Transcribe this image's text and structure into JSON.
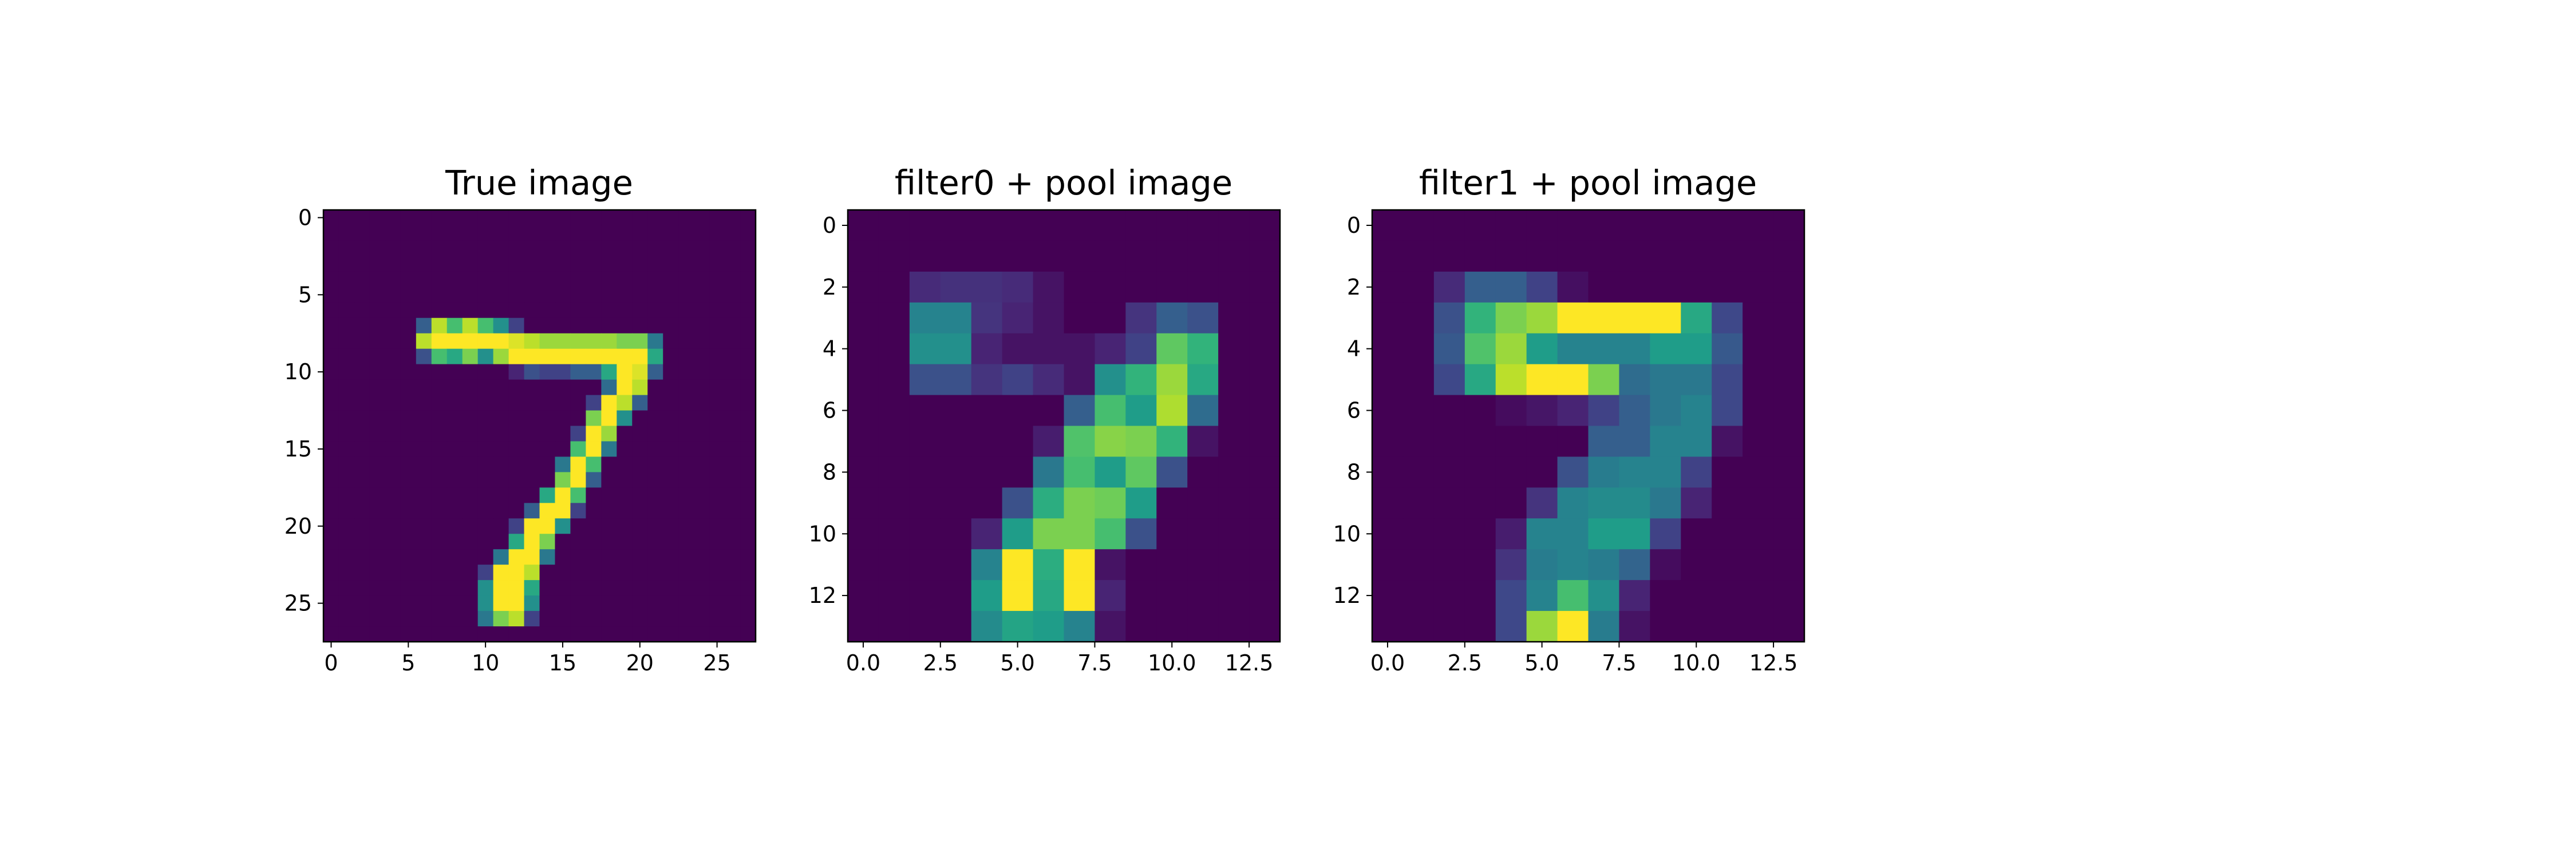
{
  "chart_data": [
    {
      "type": "heatmap",
      "title": "True image",
      "rows": 28,
      "cols": 28,
      "colormap": "viridis",
      "value_range": [
        0,
        1
      ],
      "xticks": [
        0,
        5,
        10,
        15,
        20,
        25
      ],
      "xtick_labels": [
        "0",
        "5",
        "10",
        "15",
        "20",
        "25"
      ],
      "yticks": [
        0,
        5,
        10,
        15,
        20,
        25
      ],
      "ytick_labels": [
        "0",
        "5",
        "10",
        "15",
        "20",
        "25"
      ],
      "values": [
        [
          0,
          0,
          0,
          0,
          0,
          0,
          0,
          0,
          0,
          0,
          0,
          0,
          0,
          0,
          0,
          0,
          0,
          0,
          0,
          0,
          0,
          0,
          0,
          0,
          0,
          0,
          0,
          0
        ],
        [
          0,
          0,
          0,
          0,
          0,
          0,
          0,
          0,
          0,
          0,
          0,
          0,
          0,
          0,
          0,
          0,
          0,
          0,
          0,
          0,
          0,
          0,
          0,
          0,
          0,
          0,
          0,
          0
        ],
        [
          0,
          0,
          0,
          0,
          0,
          0,
          0,
          0,
          0,
          0,
          0,
          0,
          0,
          0,
          0,
          0,
          0,
          0,
          0,
          0,
          0,
          0,
          0,
          0,
          0,
          0,
          0,
          0
        ],
        [
          0,
          0,
          0,
          0,
          0,
          0,
          0,
          0,
          0,
          0,
          0,
          0,
          0,
          0,
          0,
          0,
          0,
          0,
          0,
          0,
          0,
          0,
          0,
          0,
          0,
          0,
          0,
          0
        ],
        [
          0,
          0,
          0,
          0,
          0,
          0,
          0,
          0,
          0,
          0,
          0,
          0,
          0,
          0,
          0,
          0,
          0,
          0,
          0,
          0,
          0,
          0,
          0,
          0,
          0,
          0,
          0,
          0
        ],
        [
          0,
          0,
          0,
          0,
          0,
          0,
          0,
          0,
          0,
          0,
          0,
          0,
          0,
          0,
          0,
          0,
          0,
          0,
          0,
          0,
          0,
          0,
          0,
          0,
          0,
          0,
          0,
          0
        ],
        [
          0,
          0,
          0,
          0,
          0,
          0,
          0,
          0,
          0,
          0,
          0,
          0,
          0,
          0,
          0,
          0,
          0,
          0,
          0,
          0,
          0,
          0,
          0,
          0,
          0,
          0,
          0,
          0
        ],
        [
          0,
          0,
          0,
          0,
          0,
          0,
          0.3,
          0.9,
          0.7,
          0.9,
          0.7,
          0.5,
          0.2,
          0,
          0,
          0,
          0,
          0,
          0,
          0,
          0,
          0,
          0,
          0,
          0,
          0,
          0,
          0
        ],
        [
          0,
          0,
          0,
          0,
          0,
          0,
          0.9,
          1,
          1,
          1,
          1,
          1,
          0.95,
          0.9,
          0.85,
          0.85,
          0.85,
          0.85,
          0.85,
          0.8,
          0.8,
          0.4,
          0,
          0,
          0,
          0,
          0,
          0
        ],
        [
          0,
          0,
          0,
          0,
          0,
          0,
          0.25,
          0.7,
          0.6,
          0.8,
          0.5,
          0.85,
          1,
          1,
          1,
          1,
          1,
          1,
          1,
          1,
          1,
          0.6,
          0,
          0,
          0,
          0,
          0,
          0
        ],
        [
          0,
          0,
          0,
          0,
          0,
          0,
          0,
          0,
          0,
          0,
          0,
          0,
          0.1,
          0.25,
          0.2,
          0.2,
          0.3,
          0.3,
          0.6,
          1,
          0.95,
          0.3,
          0,
          0,
          0,
          0,
          0,
          0
        ],
        [
          0,
          0,
          0,
          0,
          0,
          0,
          0,
          0,
          0,
          0,
          0,
          0,
          0,
          0,
          0,
          0,
          0,
          0,
          0.35,
          1,
          0.9,
          0,
          0,
          0,
          0,
          0,
          0,
          0
        ],
        [
          0,
          0,
          0,
          0,
          0,
          0,
          0,
          0,
          0,
          0,
          0,
          0,
          0,
          0,
          0,
          0,
          0,
          0.2,
          1,
          0.9,
          0.3,
          0,
          0,
          0,
          0,
          0,
          0,
          0
        ],
        [
          0,
          0,
          0,
          0,
          0,
          0,
          0,
          0,
          0,
          0,
          0,
          0,
          0,
          0,
          0,
          0,
          0,
          0.8,
          1,
          0.5,
          0,
          0,
          0,
          0,
          0,
          0,
          0,
          0
        ],
        [
          0,
          0,
          0,
          0,
          0,
          0,
          0,
          0,
          0,
          0,
          0,
          0,
          0,
          0,
          0,
          0,
          0.2,
          1,
          0.85,
          0,
          0,
          0,
          0,
          0,
          0,
          0,
          0,
          0
        ],
        [
          0,
          0,
          0,
          0,
          0,
          0,
          0,
          0,
          0,
          0,
          0,
          0,
          0,
          0,
          0,
          0,
          0.7,
          1,
          0.4,
          0,
          0,
          0,
          0,
          0,
          0,
          0,
          0,
          0
        ],
        [
          0,
          0,
          0,
          0,
          0,
          0,
          0,
          0,
          0,
          0,
          0,
          0,
          0,
          0,
          0,
          0.4,
          1,
          0.7,
          0,
          0,
          0,
          0,
          0,
          0,
          0,
          0,
          0,
          0
        ],
        [
          0,
          0,
          0,
          0,
          0,
          0,
          0,
          0,
          0,
          0,
          0,
          0,
          0,
          0,
          0,
          0.8,
          1,
          0.3,
          0,
          0,
          0,
          0,
          0,
          0,
          0,
          0,
          0,
          0
        ],
        [
          0,
          0,
          0,
          0,
          0,
          0,
          0,
          0,
          0,
          0,
          0,
          0,
          0,
          0,
          0.6,
          1,
          0.7,
          0,
          0,
          0,
          0,
          0,
          0,
          0,
          0,
          0,
          0,
          0
        ],
        [
          0,
          0,
          0,
          0,
          0,
          0,
          0,
          0,
          0,
          0,
          0,
          0,
          0,
          0.3,
          1,
          1,
          0.2,
          0,
          0,
          0,
          0,
          0,
          0,
          0,
          0,
          0,
          0,
          0
        ],
        [
          0,
          0,
          0,
          0,
          0,
          0,
          0,
          0,
          0,
          0,
          0,
          0,
          0.2,
          1,
          1,
          0.5,
          0,
          0,
          0,
          0,
          0,
          0,
          0,
          0,
          0,
          0,
          0,
          0
        ],
        [
          0,
          0,
          0,
          0,
          0,
          0,
          0,
          0,
          0,
          0,
          0,
          0,
          0.6,
          1,
          0.8,
          0,
          0,
          0,
          0,
          0,
          0,
          0,
          0,
          0,
          0,
          0,
          0,
          0
        ],
        [
          0,
          0,
          0,
          0,
          0,
          0,
          0,
          0,
          0,
          0,
          0,
          0.4,
          1,
          1,
          0.4,
          0,
          0,
          0,
          0,
          0,
          0,
          0,
          0,
          0,
          0,
          0,
          0,
          0
        ],
        [
          0,
          0,
          0,
          0,
          0,
          0,
          0,
          0,
          0,
          0,
          0.2,
          1,
          1,
          0.9,
          0,
          0,
          0,
          0,
          0,
          0,
          0,
          0,
          0,
          0,
          0,
          0,
          0,
          0
        ],
        [
          0,
          0,
          0,
          0,
          0,
          0,
          0,
          0,
          0,
          0,
          0.5,
          1,
          1,
          0.6,
          0,
          0,
          0,
          0,
          0,
          0,
          0,
          0,
          0,
          0,
          0,
          0,
          0,
          0
        ],
        [
          0,
          0,
          0,
          0,
          0,
          0,
          0,
          0,
          0,
          0,
          0.5,
          1,
          1,
          0.5,
          0,
          0,
          0,
          0,
          0,
          0,
          0,
          0,
          0,
          0,
          0,
          0,
          0,
          0
        ],
        [
          0,
          0,
          0,
          0,
          0,
          0,
          0,
          0,
          0,
          0,
          0.4,
          0.8,
          0.9,
          0.2,
          0,
          0,
          0,
          0,
          0,
          0,
          0,
          0,
          0,
          0,
          0,
          0,
          0,
          0
        ],
        [
          0,
          0,
          0,
          0,
          0,
          0,
          0,
          0,
          0,
          0,
          0,
          0,
          0,
          0,
          0,
          0,
          0,
          0,
          0,
          0,
          0,
          0,
          0,
          0,
          0,
          0,
          0,
          0
        ]
      ]
    },
    {
      "type": "heatmap",
      "title": "filter0 + pool image",
      "rows": 14,
      "cols": 14,
      "colormap": "viridis",
      "value_range": [
        0,
        1
      ],
      "xticks": [
        0,
        2.5,
        5,
        7.5,
        10,
        12.5
      ],
      "xtick_labels": [
        "0.0",
        "2.5",
        "5.0",
        "7.5",
        "10.0",
        "12.5"
      ],
      "yticks": [
        0,
        2,
        4,
        6,
        8,
        10,
        12
      ],
      "ytick_labels": [
        "0",
        "2",
        "4",
        "6",
        "8",
        "10",
        "12"
      ],
      "values": [
        [
          0,
          0,
          0,
          0,
          0,
          0,
          0,
          0,
          0,
          0,
          0,
          0,
          0,
          0
        ],
        [
          0,
          0,
          0,
          0,
          0,
          0,
          0,
          0,
          0,
          0,
          0,
          0,
          0,
          0
        ],
        [
          0,
          0,
          0.12,
          0.14,
          0.14,
          0.12,
          0.05,
          0,
          0,
          0,
          0,
          0,
          0,
          0
        ],
        [
          0,
          0,
          0.45,
          0.45,
          0.15,
          0.1,
          0.05,
          0,
          0,
          0.15,
          0.3,
          0.25,
          0,
          0
        ],
        [
          0,
          0,
          0.5,
          0.5,
          0.1,
          0.05,
          0.05,
          0.05,
          0.1,
          0.2,
          0.75,
          0.65,
          0,
          0
        ],
        [
          0,
          0,
          0.25,
          0.25,
          0.15,
          0.2,
          0.12,
          0.05,
          0.5,
          0.65,
          0.85,
          0.6,
          0,
          0
        ],
        [
          0,
          0,
          0,
          0,
          0,
          0,
          0,
          0.3,
          0.7,
          0.55,
          0.88,
          0.35,
          0,
          0
        ],
        [
          0,
          0,
          0,
          0,
          0,
          0,
          0.08,
          0.72,
          0.82,
          0.8,
          0.65,
          0.05,
          0,
          0
        ],
        [
          0,
          0,
          0,
          0,
          0,
          0,
          0.4,
          0.7,
          0.55,
          0.75,
          0.25,
          0,
          0,
          0
        ],
        [
          0,
          0,
          0,
          0,
          0,
          0.25,
          0.62,
          0.8,
          0.78,
          0.55,
          0,
          0,
          0,
          0
        ],
        [
          0,
          0,
          0,
          0,
          0.1,
          0.55,
          0.8,
          0.8,
          0.7,
          0.25,
          0,
          0,
          0,
          0
        ],
        [
          0,
          0,
          0,
          0,
          0.45,
          1,
          0.62,
          1,
          0.05,
          0,
          0,
          0,
          0,
          0
        ],
        [
          0,
          0,
          0,
          0,
          0.55,
          1,
          0.6,
          1,
          0.1,
          0,
          0,
          0,
          0,
          0
        ],
        [
          0,
          0,
          0,
          0,
          0.48,
          0.58,
          0.55,
          0.45,
          0.05,
          0,
          0,
          0,
          0,
          0
        ]
      ]
    },
    {
      "type": "heatmap",
      "title": "filter1 + pool image",
      "rows": 14,
      "cols": 14,
      "colormap": "viridis",
      "value_range": [
        0,
        1
      ],
      "xticks": [
        0,
        2.5,
        5,
        7.5,
        10,
        12.5
      ],
      "xtick_labels": [
        "0.0",
        "2.5",
        "5.0",
        "7.5",
        "10.0",
        "12.5"
      ],
      "yticks": [
        0,
        2,
        4,
        6,
        8,
        10,
        12
      ],
      "ytick_labels": [
        "0",
        "2",
        "4",
        "6",
        "8",
        "10",
        "12"
      ],
      "values": [
        [
          0,
          0,
          0,
          0,
          0,
          0,
          0,
          0,
          0,
          0,
          0,
          0,
          0,
          0
        ],
        [
          0,
          0,
          0,
          0,
          0,
          0,
          0,
          0,
          0,
          0,
          0,
          0,
          0,
          0
        ],
        [
          0,
          0,
          0.12,
          0.3,
          0.3,
          0.2,
          0.04,
          0,
          0,
          0,
          0,
          0,
          0,
          0
        ],
        [
          0,
          0,
          0.25,
          0.65,
          0.8,
          0.85,
          1,
          1,
          1,
          1,
          0.6,
          0.22,
          0,
          0
        ],
        [
          0,
          0,
          0.28,
          0.72,
          0.85,
          0.55,
          0.45,
          0.45,
          0.45,
          0.55,
          0.55,
          0.28,
          0,
          0
        ],
        [
          0,
          0,
          0.22,
          0.6,
          0.9,
          1,
          1,
          0.8,
          0.35,
          0.4,
          0.4,
          0.22,
          0,
          0
        ],
        [
          0,
          0,
          0,
          0,
          0.03,
          0.06,
          0.1,
          0.2,
          0.3,
          0.4,
          0.45,
          0.22,
          0,
          0
        ],
        [
          0,
          0,
          0,
          0,
          0,
          0,
          0,
          0.3,
          0.3,
          0.45,
          0.45,
          0.05,
          0,
          0
        ],
        [
          0,
          0,
          0,
          0,
          0,
          0,
          0.25,
          0.42,
          0.45,
          0.45,
          0.2,
          0,
          0,
          0
        ],
        [
          0,
          0,
          0,
          0,
          0,
          0.15,
          0.45,
          0.48,
          0.48,
          0.4,
          0.1,
          0,
          0,
          0
        ],
        [
          0,
          0,
          0,
          0,
          0.08,
          0.45,
          0.45,
          0.55,
          0.55,
          0.2,
          0,
          0,
          0,
          0
        ],
        [
          0,
          0,
          0,
          0,
          0.15,
          0.42,
          0.45,
          0.42,
          0.32,
          0.03,
          0,
          0,
          0,
          0
        ],
        [
          0,
          0,
          0,
          0,
          0.22,
          0.45,
          0.7,
          0.5,
          0.1,
          0,
          0,
          0,
          0,
          0
        ],
        [
          0,
          0,
          0,
          0,
          0.22,
          0.85,
          1,
          0.42,
          0.05,
          0,
          0,
          0,
          0,
          0
        ]
      ]
    }
  ]
}
